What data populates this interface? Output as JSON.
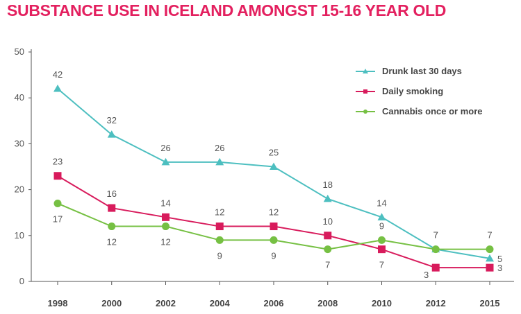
{
  "title": "SUBSTANCE USE IN ICELAND AMONGST 15-16 YEAR OLD",
  "chart_data": {
    "type": "line",
    "title": "SUBSTANCE USE IN ICELAND AMONGST 15-16 YEAR OLD",
    "xlabel": "",
    "ylabel": "",
    "x": [
      "1998",
      "2000",
      "2002",
      "2004",
      "2006",
      "2008",
      "2010",
      "2012",
      "2015"
    ],
    "ylim": [
      0,
      50
    ],
    "yticks": [
      0,
      10,
      20,
      30,
      40,
      50
    ],
    "grid": false,
    "legend_position": "top-right",
    "series": [
      {
        "name": "Drunk last 30 days",
        "values": [
          42,
          32,
          26,
          26,
          25,
          18,
          14,
          7,
          5
        ],
        "color": "#4dbfc0",
        "marker": "triangle",
        "label_position": [
          "above",
          "above",
          "above",
          "above",
          "above",
          "above",
          "above",
          "above",
          "right"
        ]
      },
      {
        "name": "Daily smoking",
        "values": [
          23,
          16,
          14,
          12,
          12,
          10,
          7,
          3,
          3
        ],
        "color": "#d81b5c",
        "marker": "square",
        "label_position": [
          "above",
          "above",
          "above",
          "above",
          "above",
          "above",
          "below",
          "below-left",
          "right"
        ]
      },
      {
        "name": "Cannabis once or more",
        "values": [
          17,
          12,
          12,
          9,
          9,
          7,
          9,
          7,
          7
        ],
        "color": "#76c043",
        "marker": "circle",
        "label_position": [
          "below",
          "below",
          "below",
          "below",
          "below",
          "below",
          "above",
          "above",
          "above"
        ]
      }
    ]
  }
}
